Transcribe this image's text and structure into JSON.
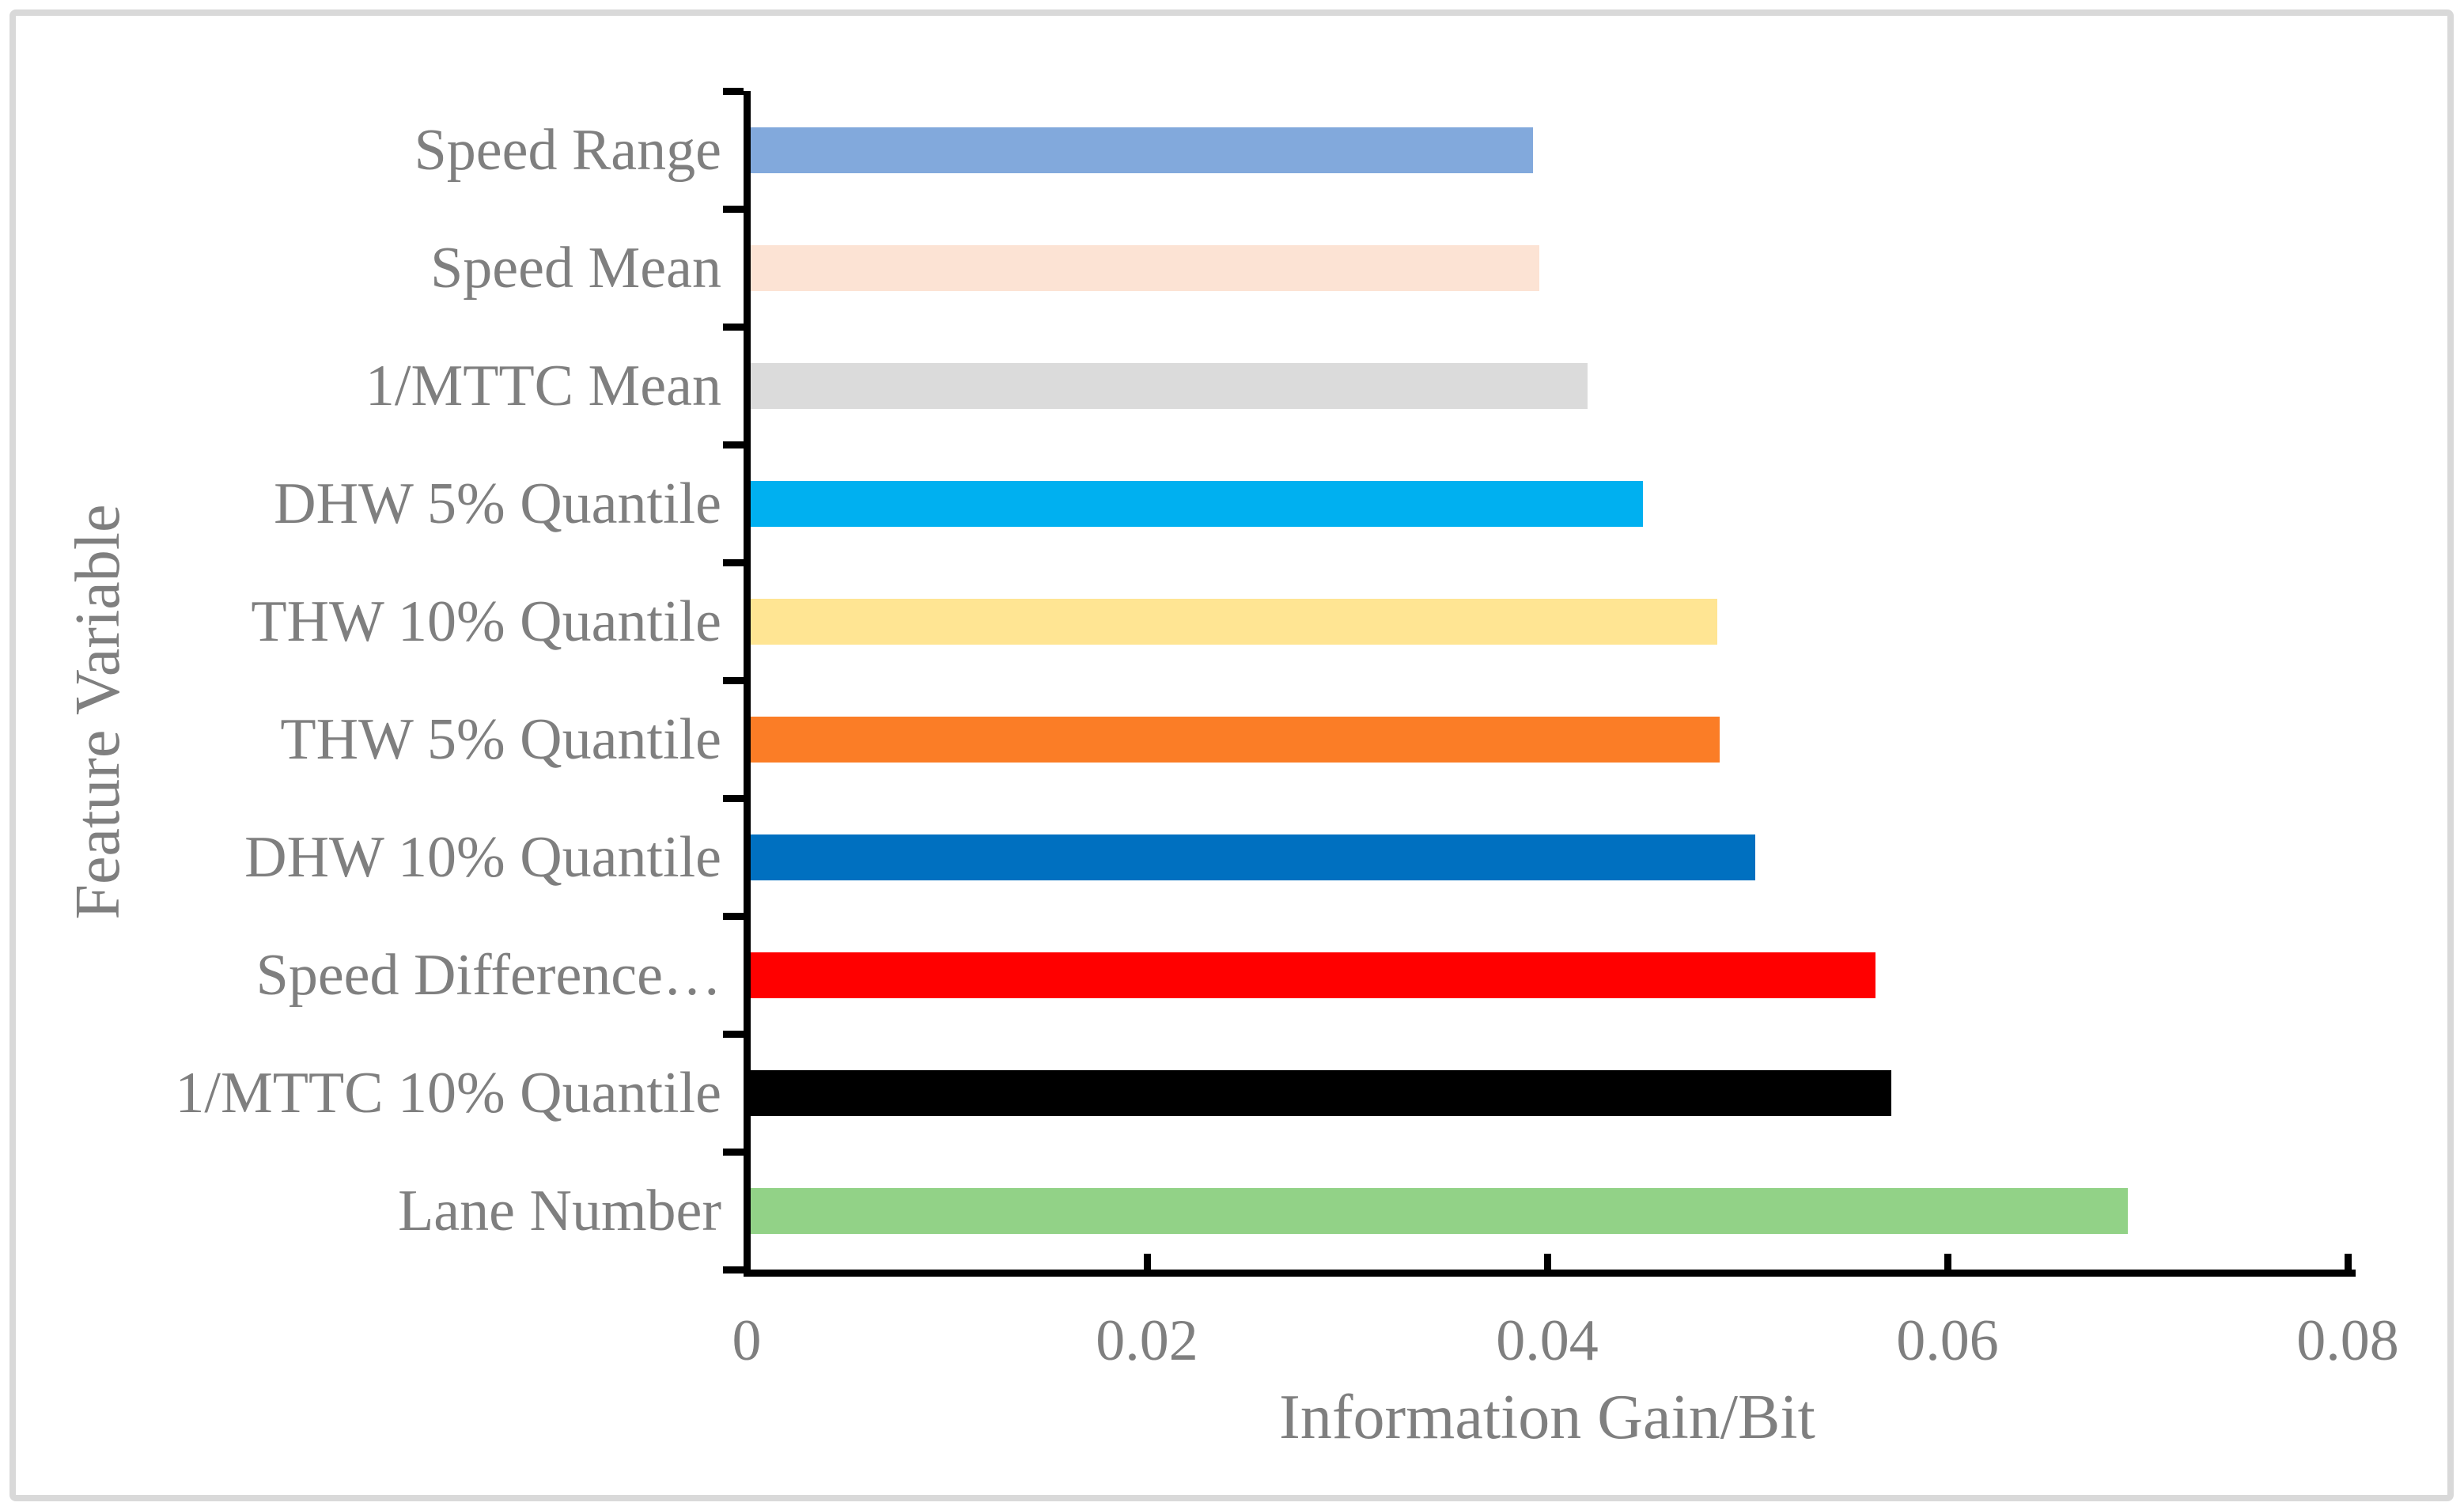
{
  "chart_data": {
    "type": "bar",
    "orientation": "horizontal",
    "xlabel": "Information Gain/Bit",
    "ylabel": "Feature Variable",
    "xlim": [
      0,
      0.08
    ],
    "x_ticks": [
      0,
      0.02,
      0.04,
      0.06,
      0.08
    ],
    "x_tick_labels": [
      "0",
      "0.02",
      "0.04",
      "0.06",
      "0.08"
    ],
    "grid": false,
    "legend": false,
    "categories_top_to_bottom": [
      {
        "label": "Speed Range",
        "value": 0.0391,
        "color": "#82A9DC"
      },
      {
        "label": "Speed Mean",
        "value": 0.0394,
        "color": "#FCE3D4"
      },
      {
        "label": "1/MTTC Mean",
        "value": 0.0418,
        "color": "#DBDBDB"
      },
      {
        "label": "DHW 5% Quantile",
        "value": 0.0446,
        "color": "#00B0F0"
      },
      {
        "label": "THW 10% Quantile",
        "value": 0.0483,
        "color": "#FFE593"
      },
      {
        "label": "THW 5% Quantile",
        "value": 0.0484,
        "color": "#FB7D26"
      },
      {
        "label": "DHW 10% Quantile",
        "value": 0.0502,
        "color": "#0070C0"
      },
      {
        "label": "Speed Difference…",
        "value": 0.0562,
        "color": "#FF0000"
      },
      {
        "label": "1/MTTC 10% Quantile",
        "value": 0.057,
        "color": "#000000"
      },
      {
        "label": "Lane Number",
        "value": 0.0688,
        "color": "#92D287"
      }
    ]
  },
  "style": {
    "axis_color": "#000000",
    "text_color": "#7F7F7F",
    "frame_color": "#D9D9D9",
    "background": "#FFFFFF"
  }
}
